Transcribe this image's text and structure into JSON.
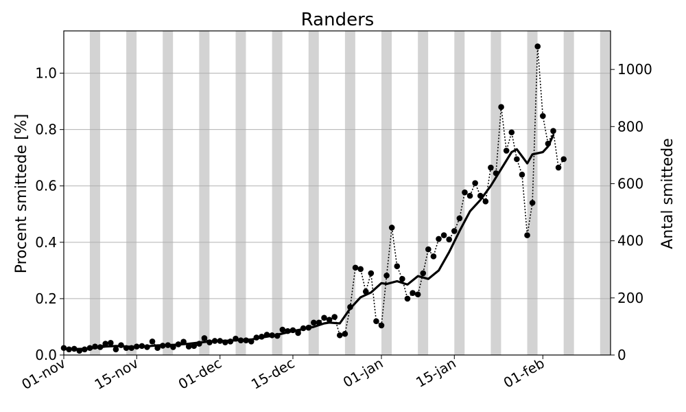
{
  "chart_data": {
    "type": "line",
    "title": "Randers",
    "ylabel_left": "Procent smittede [%]",
    "ylabel_right": "Antal smittede",
    "x_start": "2020-11-01",
    "x_end": "2021-02-14",
    "ylim_left": [
      0,
      1.15
    ],
    "ylim_right": [
      0,
      1135
    ],
    "x_ticks": [
      {
        "label": "01-nov",
        "date": "2020-11-01"
      },
      {
        "label": "15-nov",
        "date": "2020-11-15"
      },
      {
        "label": "01-dec",
        "date": "2020-12-01"
      },
      {
        "label": "15-dec",
        "date": "2020-12-15"
      },
      {
        "label": "01-jan",
        "date": "2021-01-01"
      },
      {
        "label": "15-jan",
        "date": "2021-01-15"
      },
      {
        "label": "01-feb",
        "date": "2021-02-01"
      }
    ],
    "y_ticks_left": [
      "0.0",
      "0.2",
      "0.4",
      "0.6",
      "0.8",
      "1.0"
    ],
    "y_ticks_right": [
      "0",
      "200",
      "400",
      "600",
      "800",
      "1000"
    ],
    "grid": true,
    "weekend_shading_color": "#d3d3d3",
    "weekend_dates": [
      "2020-11-06",
      "2020-11-13",
      "2020-11-20",
      "2020-11-27",
      "2020-12-04",
      "2020-12-11",
      "2020-12-18",
      "2020-12-25",
      "2021-01-01",
      "2021-01-08",
      "2021-01-15",
      "2021-01-22",
      "2021-01-29",
      "2021-02-05",
      "2021-02-12"
    ],
    "series": [
      {
        "style": "dotted-markers",
        "color": "#000000",
        "dates": [
          "2020-11-01",
          "2020-11-02",
          "2020-11-03",
          "2020-11-04",
          "2020-11-05",
          "2020-11-06",
          "2020-11-07",
          "2020-11-08",
          "2020-11-09",
          "2020-11-10",
          "2020-11-11",
          "2020-11-12",
          "2020-11-13",
          "2020-11-14",
          "2020-11-15",
          "2020-11-16",
          "2020-11-17",
          "2020-11-18",
          "2020-11-19",
          "2020-11-20",
          "2020-11-21",
          "2020-11-22",
          "2020-11-23",
          "2020-11-24",
          "2020-11-25",
          "2020-11-26",
          "2020-11-27",
          "2020-11-28",
          "2020-11-29",
          "2020-11-30",
          "2020-12-01",
          "2020-12-02",
          "2020-12-03",
          "2020-12-04",
          "2020-12-05",
          "2020-12-06",
          "2020-12-07",
          "2020-12-08",
          "2020-12-09",
          "2020-12-10",
          "2020-12-11",
          "2020-12-12",
          "2020-12-13",
          "2020-12-14",
          "2020-12-15",
          "2020-12-16",
          "2020-12-17",
          "2020-12-18",
          "2020-12-19",
          "2020-12-20",
          "2020-12-21",
          "2020-12-22",
          "2020-12-23",
          "2020-12-24",
          "2020-12-25",
          "2020-12-26",
          "2020-12-27",
          "2020-12-28",
          "2020-12-29",
          "2020-12-30",
          "2020-12-31",
          "2021-01-01",
          "2021-01-02",
          "2021-01-03",
          "2021-01-04",
          "2021-01-05",
          "2021-01-06",
          "2021-01-07",
          "2021-01-08",
          "2021-01-09",
          "2021-01-10",
          "2021-01-11",
          "2021-01-12",
          "2021-01-13",
          "2021-01-14",
          "2021-01-15",
          "2021-01-16",
          "2021-01-17",
          "2021-01-18",
          "2021-01-19",
          "2021-01-20",
          "2021-01-21",
          "2021-01-22",
          "2021-01-23",
          "2021-01-24",
          "2021-01-25",
          "2021-01-26",
          "2021-01-27",
          "2021-01-28",
          "2021-01-29",
          "2021-01-30",
          "2021-01-31",
          "2021-02-01",
          "2021-02-02",
          "2021-02-03",
          "2021-02-04",
          "2021-02-05"
        ],
        "values": [
          0.025,
          0.02,
          0.022,
          0.015,
          0.02,
          0.025,
          0.03,
          0.028,
          0.04,
          0.043,
          0.02,
          0.035,
          0.025,
          0.025,
          0.03,
          0.032,
          0.028,
          0.048,
          0.025,
          0.033,
          0.035,
          0.028,
          0.038,
          0.047,
          0.03,
          0.032,
          0.04,
          0.06,
          0.045,
          0.05,
          0.05,
          0.045,
          0.048,
          0.058,
          0.052,
          0.052,
          0.048,
          0.062,
          0.065,
          0.072,
          0.07,
          0.068,
          0.09,
          0.085,
          0.088,
          0.078,
          0.095,
          0.097,
          0.115,
          0.115,
          0.132,
          0.125,
          0.135,
          0.07,
          0.075,
          0.17,
          0.31,
          0.305,
          0.225,
          0.29,
          0.12,
          0.105,
          0.282,
          0.452,
          0.315,
          0.27,
          0.2,
          0.22,
          0.215,
          0.29,
          0.375,
          0.35,
          0.412,
          0.425,
          0.41,
          0.44,
          0.485,
          0.577,
          0.565,
          0.61,
          0.565,
          0.545,
          0.665,
          0.645,
          0.88,
          0.725,
          0.79,
          0.695,
          0.64,
          0.425,
          0.54,
          1.095,
          0.848,
          0.75,
          0.795,
          0.665,
          0.695
        ]
      },
      {
        "style": "solid-thick",
        "color": "#000000",
        "dates": [
          "2020-11-01",
          "2020-11-03",
          "2020-11-05",
          "2020-11-07",
          "2020-11-09",
          "2020-11-11",
          "2020-11-13",
          "2020-11-15",
          "2020-11-17",
          "2020-11-19",
          "2020-11-21",
          "2020-11-23",
          "2020-11-25",
          "2020-11-27",
          "2020-11-29",
          "2020-12-01",
          "2020-12-03",
          "2020-12-05",
          "2020-12-07",
          "2020-12-09",
          "2020-12-11",
          "2020-12-13",
          "2020-12-15",
          "2020-12-17",
          "2020-12-19",
          "2020-12-21",
          "2020-12-22",
          "2020-12-24",
          "2020-12-26",
          "2020-12-28",
          "2020-12-30",
          "2021-01-01",
          "2021-01-02",
          "2021-01-04",
          "2021-01-06",
          "2021-01-08",
          "2021-01-10",
          "2021-01-12",
          "2021-01-14",
          "2021-01-16",
          "2021-01-18",
          "2021-01-20",
          "2021-01-22",
          "2021-01-24",
          "2021-01-26",
          "2021-01-27",
          "2021-01-29",
          "2021-01-30",
          "2021-02-01",
          "2021-02-02",
          "2021-02-03"
        ],
        "values": [
          0.022,
          0.021,
          0.022,
          0.025,
          0.03,
          0.032,
          0.03,
          0.029,
          0.031,
          0.034,
          0.035,
          0.037,
          0.04,
          0.044,
          0.048,
          0.05,
          0.051,
          0.053,
          0.055,
          0.062,
          0.068,
          0.076,
          0.085,
          0.092,
          0.1,
          0.112,
          0.115,
          0.112,
          0.165,
          0.205,
          0.222,
          0.255,
          0.252,
          0.262,
          0.25,
          0.28,
          0.27,
          0.3,
          0.365,
          0.44,
          0.51,
          0.55,
          0.6,
          0.66,
          0.72,
          0.73,
          0.68,
          0.712,
          0.72,
          0.74,
          0.78
        ]
      }
    ]
  }
}
